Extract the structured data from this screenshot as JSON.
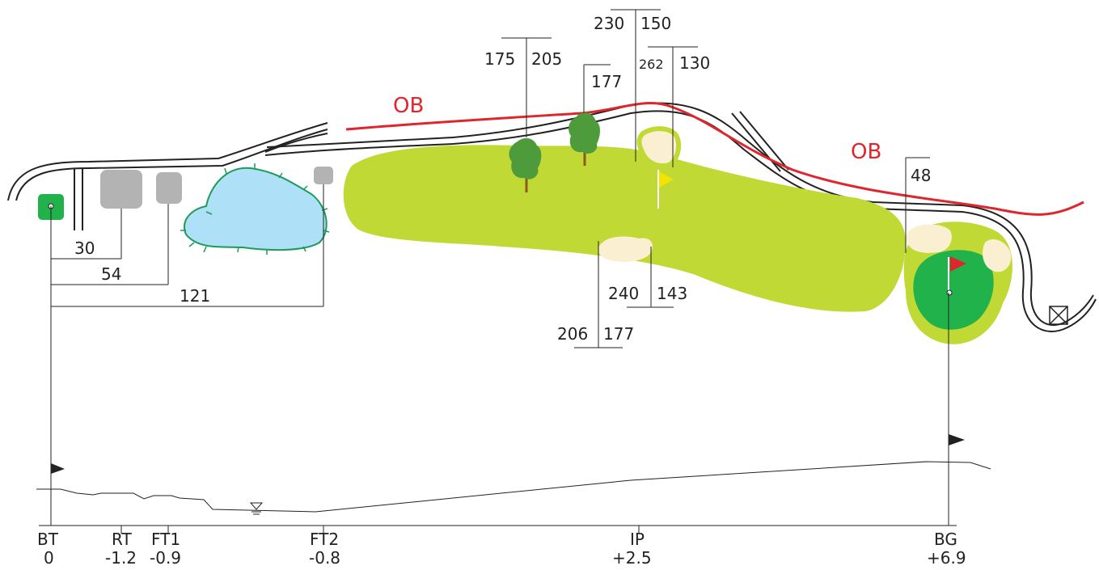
{
  "colors": {
    "fairway": "#c0d934",
    "green": "#22b24c",
    "green_apron": "#c0d934",
    "bunker": "#fbefd2",
    "water": "#aee0f7",
    "water_edge": "#1e9a5a",
    "ob_line": "#e0262d",
    "path_line": "#222222",
    "tee_grey": "#b3b3b3",
    "back_tee": "#22b24c",
    "tree_top": "#4e9b3c",
    "trunk": "#8b5a1e",
    "ip_flag": "#f2e400",
    "pin_flag": "#e0262d",
    "profile_line": "#222222"
  },
  "labels": {
    "ob_left": "OB",
    "ob_right": "OB"
  },
  "tee_distances": {
    "rt": "30",
    "ft1": "54",
    "ft2": "121"
  },
  "markers": {
    "tree1_left": "175",
    "tree1_right": "205",
    "tree2": "177",
    "ip_top_left": "230",
    "ip_top_right": "150",
    "bunker_top_left": "262",
    "bunker_top_right": "130",
    "bunker_mid_left": "240",
    "bunker_mid_right": "143",
    "bunker_low_left": "206",
    "bunker_low_right": "177",
    "green_bunker": "48"
  },
  "elevation": [
    {
      "name": "BT",
      "value": "0"
    },
    {
      "name": "RT",
      "value": "-1.2"
    },
    {
      "name": "FT1",
      "value": "-0.9"
    },
    {
      "name": "FT2",
      "value": "-0.8"
    },
    {
      "name": "IP",
      "value": "+2.5"
    },
    {
      "name": "BG",
      "value": "+6.9"
    }
  ],
  "icons": {
    "water_level": "water-level-icon",
    "out_marker": "x-box-icon"
  }
}
